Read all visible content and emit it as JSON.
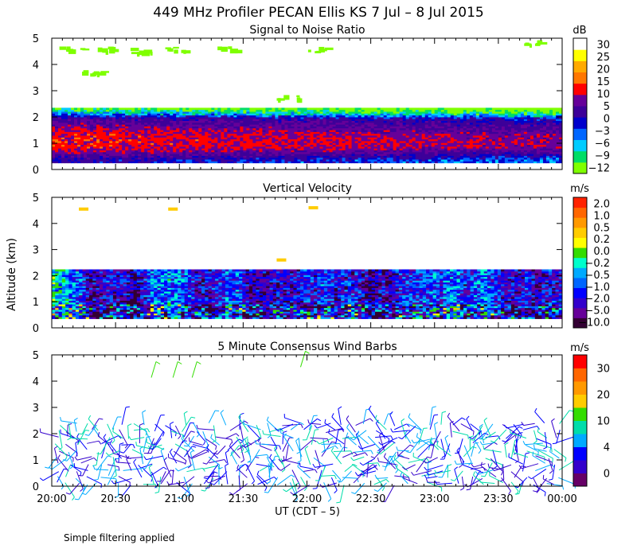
{
  "title": "449 MHz Profiler PECAN Ellis KS  7 Jul –  8 Jul 2015",
  "ylabel": "Altitude (km)",
  "xlabel": "UT  (CDT – 5)",
  "footnote": "Simple filtering applied",
  "colors": {
    "snr": [
      "#7fff00",
      "#00dd66",
      "#00ccff",
      "#0066ff",
      "#0000cc",
      "#3d0099",
      "#660099",
      "#ff0000",
      "#ff7700",
      "#ffaa00",
      "#ffff00",
      "#ffffff"
    ],
    "velocity": [
      "#330033",
      "#660099",
      "#3300cc",
      "#0000ff",
      "#0066ff",
      "#00aaff",
      "#00ffcc",
      "#33dd00",
      "#ffff00",
      "#ffcc00",
      "#ff9900",
      "#ff6600",
      "#ff2200"
    ],
    "wind": [
      "#660066",
      "#3300cc",
      "#0000ff",
      "#00aaff",
      "#00ddaa",
      "#33dd00",
      "#ffcc00",
      "#ff9900",
      "#ff6600",
      "#ff0000"
    ]
  },
  "chart_data": [
    {
      "type": "heatmap",
      "title": "Signal to Noise Ratio",
      "unit": "dB",
      "x_ticks": [
        "20:00",
        "20:30",
        "21:00",
        "21:30",
        "22:00",
        "22:30",
        "23:00",
        "23:30",
        "00:00"
      ],
      "y_ticks": [
        "0",
        "1",
        "2",
        "3",
        "4",
        "5"
      ],
      "ylim": [
        0,
        5
      ],
      "x_range_hours": [
        20,
        24
      ],
      "colorbar_labels": [
        "30",
        "25",
        "20",
        "15",
        "10",
        "5",
        "0",
        "−3",
        "−6",
        "−9",
        "−12"
      ],
      "profile": {
        "altitude_km": [
          0.3,
          0.5,
          0.8,
          1.0,
          1.3,
          1.6,
          1.9,
          2.1,
          2.3
        ],
        "snr_db": [
          0,
          5,
          12,
          13,
          12,
          8,
          4,
          -6,
          -12
        ]
      },
      "echo_top_km": 2.3
    },
    {
      "type": "heatmap",
      "title": "Vertical Velocity",
      "unit": "m/s",
      "x_ticks": [
        "20:00",
        "20:30",
        "21:00",
        "21:30",
        "22:00",
        "22:30",
        "23:00",
        "23:30",
        "00:00"
      ],
      "y_ticks": [
        "0",
        "1",
        "2",
        "3",
        "4",
        "5"
      ],
      "ylim": [
        0,
        5
      ],
      "x_range_hours": [
        20,
        24
      ],
      "colorbar_labels": [
        "2.0",
        "1.0",
        "0.5",
        "0.2",
        "0.0",
        "−0.2",
        "−0.5",
        "−1.0",
        "−2.0",
        "−5.0",
        "−10.0"
      ],
      "echo_top_km": 2.2
    },
    {
      "type": "scatter",
      "title": "5 Minute Consensus Wind Barbs",
      "unit": "m/s",
      "x_ticks": [
        "20:00",
        "20:30",
        "21:00",
        "21:30",
        "22:00",
        "22:30",
        "23:00",
        "23:30",
        "00:00"
      ],
      "y_ticks": [
        "0",
        "1",
        "2",
        "3",
        "4",
        "5"
      ],
      "ylim": [
        0,
        5
      ],
      "x_range_hours": [
        20,
        24
      ],
      "colorbar_labels": [
        "30",
        "20",
        "10",
        "4",
        "0"
      ],
      "barb_layer_top_km": 2.5,
      "upper_barbs": [
        {
          "time_h": 20.78,
          "alt_km": 4.5
        },
        {
          "time_h": 20.95,
          "alt_km": 4.5
        },
        {
          "time_h": 21.1,
          "alt_km": 4.5
        },
        {
          "time_h": 21.95,
          "alt_km": 4.9
        }
      ]
    }
  ]
}
